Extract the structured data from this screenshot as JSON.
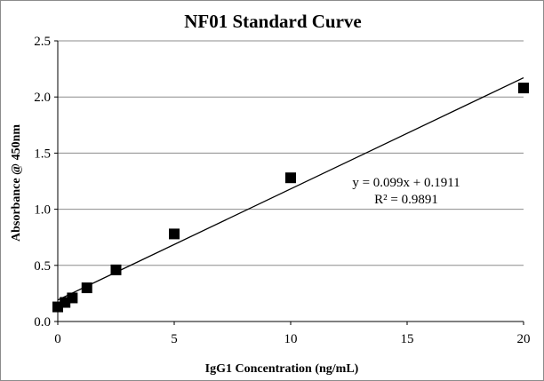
{
  "chart_data": {
    "type": "scatter",
    "title": "NF01 Standard Curve",
    "xlabel": "IgG1 Concentration (ng/mL)",
    "ylabel": "Absorbance @ 450nm",
    "xlim": [
      0,
      20
    ],
    "ylim": [
      0,
      2.5
    ],
    "x_ticks": [
      "0",
      "5",
      "10",
      "15",
      "20"
    ],
    "y_ticks": [
      "0.0",
      "0.5",
      "1.0",
      "1.5",
      "2.0",
      "2.5"
    ],
    "grid": "horizontal",
    "legend": "none",
    "marker_color": "#000000",
    "series": [
      {
        "x": [
          0,
          0.3125,
          0.625,
          1.25,
          2.5,
          5,
          10,
          20
        ],
        "y": [
          0.13,
          0.17,
          0.21,
          0.3,
          0.46,
          0.78,
          1.28,
          2.08
        ]
      }
    ],
    "trendline": {
      "type": "linear",
      "slope": 0.099,
      "intercept": 0.1911,
      "equation_label": "y = 0.099x + 0.1911",
      "r2_label": "R² = 0.9891"
    }
  }
}
